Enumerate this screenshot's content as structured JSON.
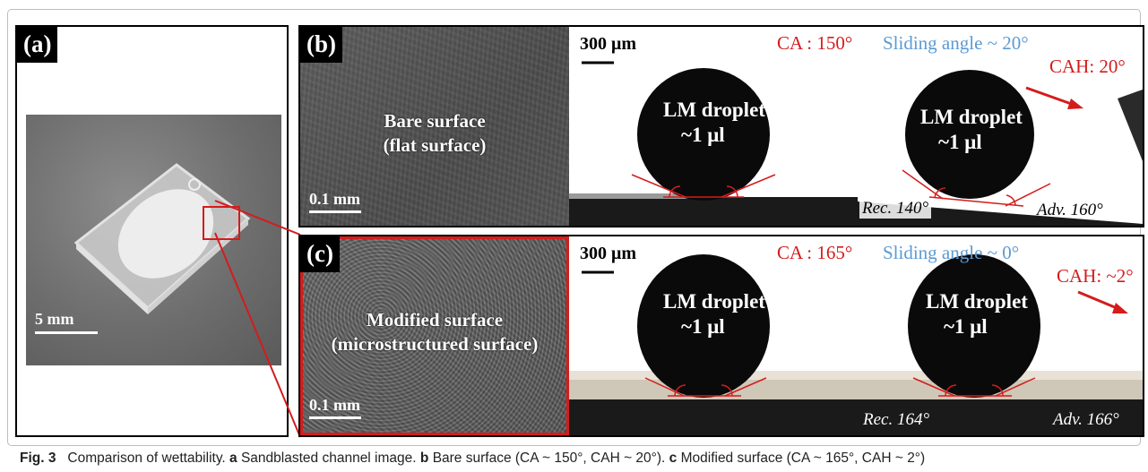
{
  "panel_a": {
    "label": "(a)",
    "scale": "5 mm"
  },
  "panel_b": {
    "label": "(b)",
    "surface_title": "Bare surface",
    "surface_subtitle": "(flat surface)",
    "sem_scale": "0.1 mm",
    "photo_scale": "300 μm",
    "ca": "CA : 150°",
    "sliding": "Sliding angle ~ 20°",
    "cah": "CAH: 20°",
    "droplet_1": "LM droplet",
    "droplet_2": "~1 μl",
    "rec": "Rec. 140°",
    "adv": "Adv. 160°"
  },
  "panel_c": {
    "label": "(c)",
    "surface_title": "Modified surface",
    "surface_subtitle": "(microstructured surface)",
    "sem_scale": "0.1 mm",
    "photo_scale": "300 μm",
    "ca": "CA : 165°",
    "sliding": "Sliding angle ~ 0°",
    "cah": "CAH: ~2°",
    "droplet_1": "LM droplet",
    "droplet_2": "~1 μl",
    "rec": "Rec. 164°",
    "adv": "Adv. 166°"
  },
  "caption": {
    "fig": "Fig. 3",
    "title": "Comparison of wettability.",
    "a_key": "a",
    "a_text": "Sandblasted channel image.",
    "b_key": "b",
    "b_text": "Bare surface (CA ~ 150°, CAH ~ 20°).",
    "c_key": "c",
    "c_text": "Modified surface (CA ~ 165°, CAH ~ 2°)"
  },
  "colors": {
    "red": "#d41c1c",
    "blue": "#5b9bd5",
    "black": "#000000"
  }
}
